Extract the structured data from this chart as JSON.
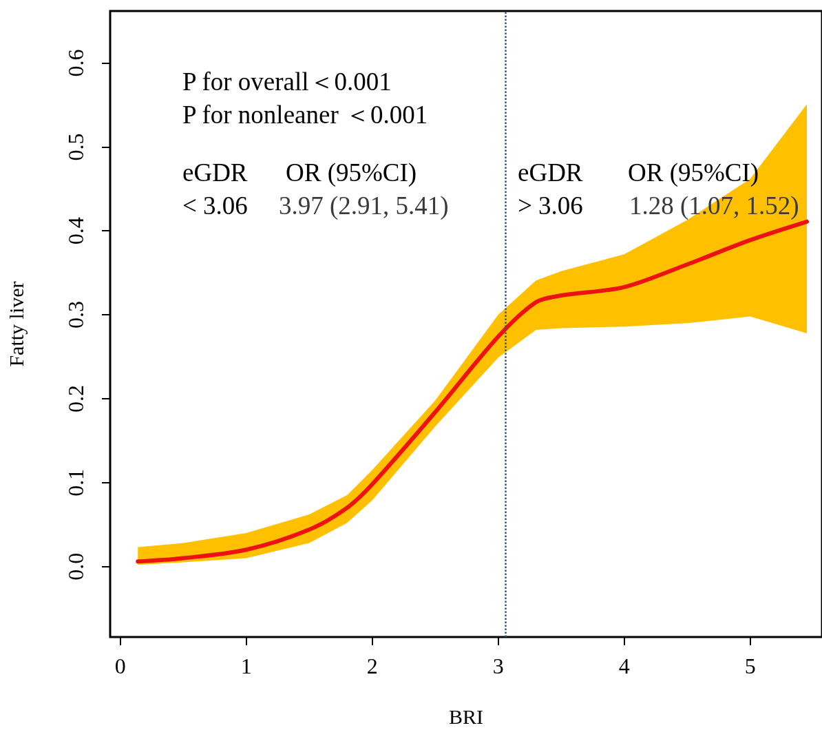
{
  "chart_data": {
    "type": "line",
    "xlabel": "BRI",
    "ylabel": "Fatty liver",
    "xlim": [
      -0.08,
      5.57
    ],
    "ylim": [
      -0.084,
      0.662
    ],
    "xticks": [
      0,
      1,
      2,
      3,
      4,
      5
    ],
    "yticks": [
      {
        "value": 0,
        "label": "0.0"
      },
      0.1,
      0.2,
      0.3,
      0.4,
      0.5,
      0.6
    ],
    "grid": false,
    "marker": "none",
    "line_style": "solid",
    "series": [
      {
        "color": "#ee1111",
        "x": [
          0.14,
          0.5,
          1.0,
          1.5,
          1.8,
          2.0,
          2.5,
          3.0,
          3.3,
          3.5,
          4.0,
          4.5,
          5.0,
          5.45
        ],
        "values": [
          0.006,
          0.01,
          0.02,
          0.044,
          0.07,
          0.098,
          0.184,
          0.274,
          0.315,
          0.323,
          0.333,
          0.36,
          0.389,
          0.411
        ],
        "lower": [
          0.002,
          0.005,
          0.01,
          0.028,
          0.052,
          0.079,
          0.167,
          0.249,
          0.282,
          0.284,
          0.286,
          0.29,
          0.298,
          0.278
        ],
        "upper": [
          0.023,
          0.028,
          0.04,
          0.062,
          0.085,
          0.115,
          0.198,
          0.3,
          0.341,
          0.352,
          0.372,
          0.413,
          0.462,
          0.551
        ]
      }
    ],
    "ref_lines": [
      {
        "axis": "x",
        "value": 3.06,
        "label": null,
        "color": "#2f5485",
        "line_style": "dotted"
      }
    ],
    "annotations": [
      "P for overall＜0.001",
      "P for nonleaner ＜0.001",
      "eGDR",
      "OR (95%CI)",
      "< 3.06",
      "3.97 (2.91, 5.41)",
      "eGDR",
      "OR (95%CI)",
      "> 3.06",
      "1.28 (1.07, 1.52)"
    ]
  }
}
